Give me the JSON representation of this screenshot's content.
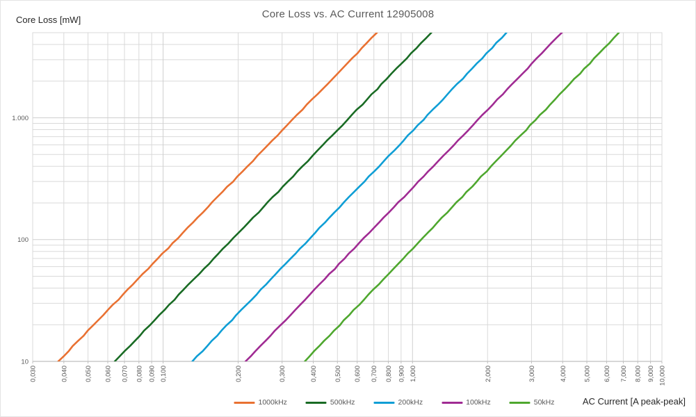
{
  "chart_data": {
    "type": "line",
    "title": "Core Loss vs. AC Current 12905008",
    "ylabel": "Core Loss [mW]",
    "xlabel": "AC Current [A peak-peak]",
    "x_scale": "log",
    "y_scale": "log",
    "x_range": [
      0.03,
      10
    ],
    "y_range": [
      10,
      5000
    ],
    "grid": "major-and-minor",
    "legend_position": "bottom",
    "x_tick_values": [
      0.03,
      0.04,
      0.05,
      0.06,
      0.07,
      0.08,
      0.09,
      0.1,
      0.2,
      0.3,
      0.4,
      0.5,
      0.6,
      0.7,
      0.8,
      0.9,
      1,
      2,
      3,
      4,
      5,
      6,
      7,
      8,
      9,
      10
    ],
    "x_tick_labels": [
      "0,030",
      "0,040",
      "0,050",
      "0,060",
      "0,070",
      "0,080",
      "0,090",
      "0,100",
      "0,200",
      "0,300",
      "0,400",
      "0,500",
      "0,600",
      "0,700",
      "0,800",
      "0,900",
      "1,000",
      "2,000",
      "3,000",
      "4,000",
      "5,000",
      "6,000",
      "7,000",
      "8,000",
      "9,000",
      "10,000"
    ],
    "y_tick_values": [
      10,
      100,
      1000
    ],
    "y_tick_labels": [
      "10",
      "100",
      "1.000"
    ],
    "colors": {
      "gridline": "#D9D9D9",
      "major_gridline": "#CFCFCF",
      "axis_line": "#BFBFBF",
      "tick_label": "#595959",
      "title_text": "#595959",
      "axis_title_text": "#262626"
    },
    "series": [
      {
        "name": "1000kHz",
        "color": "#E97132",
        "points": [
          [
            0.038,
            10
          ],
          [
            0.72,
            5000
          ]
        ]
      },
      {
        "name": "500kHz",
        "color": "#196B24",
        "points": [
          [
            0.064,
            10
          ],
          [
            1.19,
            5000
          ]
        ]
      },
      {
        "name": "200kHz",
        "color": "#0F9ED5",
        "points": [
          [
            0.131,
            10
          ],
          [
            2.38,
            5000
          ]
        ]
      },
      {
        "name": "100kHz",
        "color": "#A02B93",
        "points": [
          [
            0.214,
            10
          ],
          [
            3.97,
            5000
          ]
        ]
      },
      {
        "name": "50kHz",
        "color": "#4EA72E",
        "points": [
          [
            0.37,
            10
          ],
          [
            6.72,
            5000
          ]
        ]
      }
    ]
  }
}
